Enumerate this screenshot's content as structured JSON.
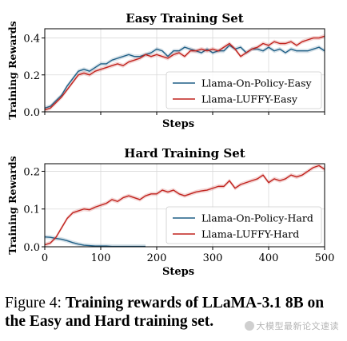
{
  "caption": {
    "label": "Figure 4:",
    "text": "Training rewards of LLaMA-3.1 8B on the Easy and Hard training set."
  },
  "watermark": "大模型最新论文速读",
  "chart_data": [
    {
      "type": "line",
      "title": "Easy Training Set",
      "xlabel": "Steps",
      "ylabel": "Training Rewards",
      "xlim": [
        0,
        500
      ],
      "ylim": [
        0,
        0.45
      ],
      "xticks": [],
      "yticks": [
        0.0,
        0.2,
        0.4
      ],
      "ytick_labels": [
        "0.0",
        "0.2",
        "0.4"
      ],
      "grid": true,
      "legend": "lower-right",
      "series": [
        {
          "name": "Llama-On-Policy-Easy",
          "color": "#1f5f86",
          "x": [
            0,
            10,
            20,
            30,
            40,
            50,
            60,
            70,
            80,
            90,
            100,
            110,
            120,
            130,
            140,
            150,
            160,
            170,
            180,
            190,
            200,
            210,
            220,
            230,
            240,
            250,
            260,
            270,
            280,
            290,
            300,
            310,
            320,
            330,
            340,
            350,
            360,
            370,
            380,
            390,
            400,
            410,
            420,
            430,
            440,
            450,
            460,
            470,
            480,
            490,
            500
          ],
          "values": [
            0.02,
            0.03,
            0.06,
            0.09,
            0.14,
            0.18,
            0.22,
            0.23,
            0.22,
            0.24,
            0.26,
            0.26,
            0.28,
            0.29,
            0.3,
            0.31,
            0.3,
            0.3,
            0.31,
            0.32,
            0.34,
            0.33,
            0.3,
            0.33,
            0.33,
            0.35,
            0.34,
            0.33,
            0.32,
            0.34,
            0.32,
            0.33,
            0.33,
            0.36,
            0.34,
            0.35,
            0.32,
            0.34,
            0.34,
            0.33,
            0.35,
            0.33,
            0.34,
            0.32,
            0.34,
            0.33,
            0.33,
            0.33,
            0.34,
            0.35,
            0.33
          ]
        },
        {
          "name": "Llama-LUFFY-Easy",
          "color": "#c0221d",
          "x": [
            0,
            10,
            20,
            30,
            40,
            50,
            60,
            70,
            80,
            90,
            100,
            110,
            120,
            130,
            140,
            150,
            160,
            170,
            180,
            190,
            200,
            210,
            220,
            230,
            240,
            250,
            260,
            270,
            280,
            290,
            300,
            310,
            320,
            330,
            340,
            350,
            360,
            370,
            380,
            390,
            400,
            410,
            420,
            430,
            440,
            450,
            460,
            470,
            480,
            490,
            500
          ],
          "values": [
            0.01,
            0.02,
            0.05,
            0.08,
            0.12,
            0.16,
            0.2,
            0.21,
            0.2,
            0.22,
            0.23,
            0.24,
            0.25,
            0.26,
            0.25,
            0.27,
            0.28,
            0.29,
            0.31,
            0.3,
            0.31,
            0.3,
            0.29,
            0.31,
            0.32,
            0.3,
            0.33,
            0.33,
            0.34,
            0.33,
            0.34,
            0.33,
            0.35,
            0.37,
            0.34,
            0.3,
            0.32,
            0.34,
            0.35,
            0.37,
            0.36,
            0.38,
            0.37,
            0.37,
            0.38,
            0.36,
            0.38,
            0.39,
            0.4,
            0.4,
            0.41
          ]
        }
      ]
    },
    {
      "type": "line",
      "title": "Hard Training Set",
      "xlabel": "Steps",
      "ylabel": "Training Rewards",
      "xlim": [
        0,
        500
      ],
      "ylim": [
        0,
        0.22
      ],
      "xticks": [
        0,
        100,
        200,
        300,
        400,
        500
      ],
      "xtick_labels": [
        "0",
        "100",
        "200",
        "300",
        "400",
        "500"
      ],
      "yticks": [
        0.0,
        0.1,
        0.2
      ],
      "ytick_labels": [
        "0.0",
        "0.1",
        "0.2"
      ],
      "grid": true,
      "legend": "lower-right",
      "series": [
        {
          "name": "Llama-On-Policy-Hard",
          "color": "#1f5f86",
          "x": [
            0,
            10,
            20,
            30,
            40,
            50,
            60,
            70,
            80,
            90,
            100,
            110,
            120,
            130,
            140,
            150,
            160,
            170,
            180
          ],
          "values": [
            0.026,
            0.025,
            0.022,
            0.02,
            0.016,
            0.011,
            0.007,
            0.004,
            0.003,
            0.002,
            0.002,
            0.002,
            0.001,
            0.001,
            0.001,
            0.001,
            0.001,
            0.001,
            0.001
          ]
        },
        {
          "name": "Llama-LUFFY-Hard",
          "color": "#c0221d",
          "x": [
            0,
            10,
            20,
            30,
            40,
            50,
            60,
            70,
            80,
            90,
            100,
            110,
            120,
            130,
            140,
            150,
            160,
            170,
            180,
            190,
            200,
            210,
            220,
            230,
            240,
            250,
            260,
            270,
            280,
            290,
            300,
            310,
            320,
            330,
            340,
            350,
            360,
            370,
            380,
            390,
            400,
            410,
            420,
            430,
            440,
            450,
            460,
            470,
            480,
            490,
            500
          ],
          "values": [
            0.005,
            0.01,
            0.025,
            0.05,
            0.075,
            0.09,
            0.095,
            0.1,
            0.098,
            0.105,
            0.11,
            0.115,
            0.125,
            0.12,
            0.13,
            0.135,
            0.13,
            0.125,
            0.135,
            0.14,
            0.14,
            0.15,
            0.145,
            0.15,
            0.14,
            0.135,
            0.14,
            0.145,
            0.148,
            0.15,
            0.155,
            0.16,
            0.16,
            0.175,
            0.155,
            0.165,
            0.17,
            0.175,
            0.18,
            0.19,
            0.17,
            0.18,
            0.175,
            0.18,
            0.19,
            0.185,
            0.19,
            0.2,
            0.21,
            0.215,
            0.205
          ]
        }
      ]
    }
  ]
}
